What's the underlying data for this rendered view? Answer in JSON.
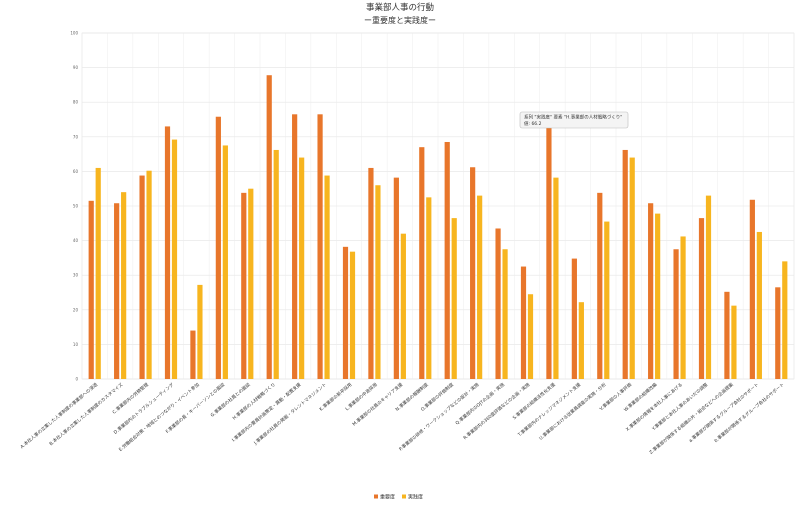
{
  "chart_data": {
    "type": "bar",
    "title": "事業部人事の行動",
    "subtitle": "ー重要度と実践度ー",
    "ylim": [
      0,
      100
    ],
    "yticks": [
      0,
      10,
      20,
      30,
      40,
      50,
      60,
      70,
      80,
      90,
      100
    ],
    "legend_position": "bottom-center",
    "grid": true,
    "categories": [
      "A.本社人事の立案した人事制度の事業部への浸透",
      "B.本社人事の立案した人事制度のカスタマイズ",
      "C.事業部内の労務管理",
      "D.事業部内のトラブルシューティング",
      "E.労働組合対策・地域とのつながり・イベント参加",
      "F.事業部の長・キーパーソンとの面談",
      "G.事業部の社員との面談",
      "H.事業部の人材戦略づくり",
      "I.事業部内の要員計画策定・異動・配置支援",
      "J.事業部の社員の発掘・タレントマネジメント",
      "K.事業部の新卒採用",
      "L.事業部の中途採用",
      "M.事業部の社員のキャリア支援",
      "N.事業部の報酬制度",
      "O.事業部の評価制度",
      "P.事業部の研修・ワークショップなどの設計・実施",
      "Q.事業部内のOJTの企画・実施",
      "R.事業部内の360度評価などの企画・実施",
      "S.事業部の組織活性化支援",
      "T.事業部内のナレッジマネジメント支援",
      "U.事業部における従業員調査の実施・分析",
      "V.事業部の人事評価",
      "W.事業部の組織改編",
      "X.事業部の情報を本社人事にあげる",
      "Y.事業部と本社人事のあいだの調整",
      "Z.事業部が関係する組織の外・組合などへの企画提案",
      "a.事業部が関係するグループ会社のサポート",
      "b.事業部が関係するグループ会社のサポート"
    ],
    "series": [
      {
        "name": "重要度",
        "color": "#e8762b",
        "values": [
          51.5,
          50.8,
          58.8,
          73,
          14,
          75.8,
          53.8,
          87.8,
          76.5,
          76.5,
          38.2,
          61,
          58.2,
          67,
          68.5,
          61.2,
          43.5,
          32.5,
          73.5,
          34.8,
          53.8,
          66.2,
          50.8,
          37.5,
          46.5,
          25.2,
          51.8,
          26.5
        ]
      },
      {
        "name": "実践度",
        "color": "#f7b51f",
        "values": [
          61,
          54,
          60.2,
          69.2,
          27.2,
          67.5,
          55,
          66.2,
          64,
          58.8,
          36.8,
          56,
          42,
          52.5,
          46.5,
          53,
          37.5,
          24.5,
          58.2,
          22.2,
          45.5,
          64,
          47.8,
          41.2,
          53,
          21.2,
          42.5,
          34
        ]
      }
    ]
  },
  "tooltip": {
    "line1": "系列 \"実践度\" 要素 \"H.事業部の人材戦略づくり\"",
    "line2": "値: 66.2"
  }
}
